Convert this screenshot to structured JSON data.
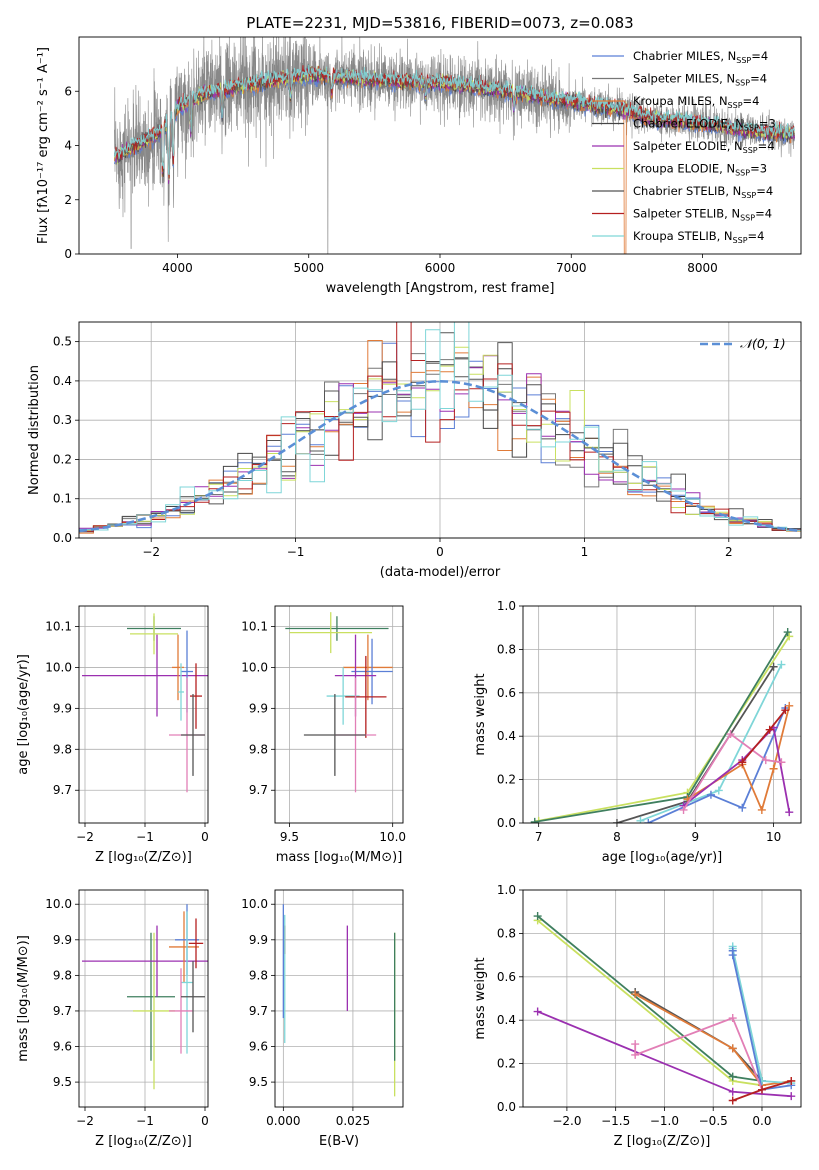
{
  "title": "PLATE=2231, MJD=53816, FIBERID=0073, z=0.083",
  "colors": {
    "grid": "#b0b0b0",
    "chabrier_miles": "#5b7fd6",
    "salpeter_miles": "#777777",
    "kroupa_miles": "#e07b39",
    "chabrier_elodie": "#444444",
    "salpeter_elodie": "#9b30b0",
    "kroupa_elodie": "#c9e060",
    "chabrier_stelib": "#555555",
    "salpeter_stelib": "#b52020",
    "kroupa_stelib": "#7fd6d8",
    "pink": "#e27fb6",
    "darkgreen": "#3f7f5f",
    "gauss": "#5b8fd6"
  },
  "chart_data": [
    {
      "type": "line",
      "panel": "spectrum",
      "xlabel": "wavelength [Angstrom, rest frame]",
      "ylabel": "Flux [fλ10⁻¹⁷ erg cm⁻² s⁻¹ A⁻¹]",
      "xlim": [
        3250,
        8750
      ],
      "ylim": [
        0,
        8
      ],
      "xticks": [
        "4000",
        "5000",
        "6000",
        "7000",
        "8000"
      ],
      "yticks": [
        "0",
        "2",
        "4",
        "6"
      ],
      "continuum": {
        "x": [
          3550,
          3600,
          3700,
          3800,
          3900,
          4000,
          4200,
          4500,
          5000,
          5500,
          6000,
          6500,
          7000,
          7400,
          7600,
          8000,
          8400,
          8700
        ],
        "y": [
          3.6,
          3.8,
          4.0,
          4.3,
          4.6,
          5.4,
          5.9,
          6.2,
          6.6,
          6.4,
          6.3,
          6.0,
          5.6,
          5.3,
          5.0,
          4.8,
          4.5,
          4.4
        ]
      },
      "legend": [
        {
          "label": "Chabrier MILES, N",
          "sub": "SSP",
          "suffix": "=4",
          "color": "chabrier_miles"
        },
        {
          "label": "Salpeter MILES, N",
          "sub": "SSP",
          "suffix": "=4",
          "color": "salpeter_miles"
        },
        {
          "label": "Kroupa MILES, N",
          "sub": "SSP",
          "suffix": "=4",
          "color": "kroupa_miles"
        },
        {
          "label": "Chabrier ELODIE, N",
          "sub": "SSP",
          "suffix": "=3",
          "color": "chabrier_elodie"
        },
        {
          "label": "Salpeter ELODIE, N",
          "sub": "SSP",
          "suffix": "=4",
          "color": "salpeter_elodie"
        },
        {
          "label": "Kroupa ELODIE, N",
          "sub": "SSP",
          "suffix": "=3",
          "color": "kroupa_elodie"
        },
        {
          "label": "Chabrier STELIB, N",
          "sub": "SSP",
          "suffix": "=4",
          "color": "chabrier_stelib"
        },
        {
          "label": "Salpeter STELIB, N",
          "sub": "SSP",
          "suffix": "=4",
          "color": "salpeter_stelib"
        },
        {
          "label": "Kroupa STELIB, N",
          "sub": "SSP",
          "suffix": "=4",
          "color": "kroupa_stelib"
        }
      ]
    },
    {
      "type": "line",
      "panel": "residuals",
      "xlabel": "(data-model)/error",
      "ylabel": "Normed distribution",
      "xlim": [
        -2.5,
        2.5
      ],
      "ylim": [
        0,
        0.55
      ],
      "xticks": [
        "−2",
        "−1",
        "0",
        "1",
        "2"
      ],
      "yticks": [
        "0.0",
        "0.1",
        "0.2",
        "0.3",
        "0.4",
        "0.5"
      ],
      "legend": "𝒩(0, 1)",
      "bin_width": 0.1
    },
    {
      "type": "scatter",
      "panel": "Z-age",
      "xlabel": "Z [log₁₀(Z/Z⊙)]",
      "ylabel": "age  [log₁₀(age/yr)]",
      "xlim": [
        -2.1,
        0.05
      ],
      "ylim": [
        9.62,
        10.15
      ],
      "xticks": [
        "−2",
        "−1",
        "0"
      ],
      "yticks": [
        "9.7",
        "9.8",
        "9.9",
        "10.0",
        "10.1"
      ],
      "points": [
        {
          "x": -0.85,
          "y": 10.095,
          "xerr": 0.45,
          "yerr": 0.03,
          "color": "darkgreen"
        },
        {
          "x": -0.85,
          "y": 10.082,
          "xerr": 0.4,
          "yerr": 0.05,
          "color": "kroupa_elodie"
        },
        {
          "x": -0.8,
          "y": 9.98,
          "xerr": 1.25,
          "yerr": 0.1,
          "color": "salpeter_elodie"
        },
        {
          "x": -0.45,
          "y": 10.0,
          "xerr": 0.1,
          "yerr": 0.08,
          "color": "kroupa_miles"
        },
        {
          "x": -0.3,
          "y": 9.99,
          "xerr": 0.1,
          "yerr": 0.1,
          "color": "chabrier_miles"
        },
        {
          "x": -0.4,
          "y": 9.94,
          "xerr": 0.05,
          "yerr": 0.07,
          "color": "kroupa_stelib"
        },
        {
          "x": -0.15,
          "y": 9.93,
          "xerr": 0.1,
          "yerr": 0.08,
          "color": "salpeter_stelib"
        },
        {
          "x": -0.3,
          "y": 9.835,
          "xerr": 0.3,
          "yerr": 0.14,
          "color": "pink"
        },
        {
          "x": -0.2,
          "y": 9.835,
          "xerr": 0.2,
          "yerr": 0.1,
          "color": "chabrier_stelib"
        }
      ]
    },
    {
      "type": "scatter",
      "panel": "mass-age",
      "xlabel": "mass [log₁₀(M/M⊙)]",
      "ylabel": "",
      "xlim": [
        9.43,
        10.05
      ],
      "ylim": [
        9.62,
        10.15
      ],
      "xticks": [
        "9.5",
        "10.0"
      ],
      "yticks": [
        "9.7",
        "9.8",
        "9.9",
        "10.0",
        "10.1"
      ],
      "points": [
        {
          "x": 9.73,
          "y": 10.095,
          "xerr": 0.25,
          "yerr": 0.03,
          "color": "darkgreen"
        },
        {
          "x": 9.7,
          "y": 10.085,
          "xerr": 0.2,
          "yerr": 0.05,
          "color": "kroupa_elodie"
        },
        {
          "x": 9.88,
          "y": 10.0,
          "xerr": 0.12,
          "yerr": 0.08,
          "color": "kroupa_miles"
        },
        {
          "x": 9.9,
          "y": 9.99,
          "xerr": 0.1,
          "yerr": 0.08,
          "color": "chabrier_miles"
        },
        {
          "x": 9.82,
          "y": 9.98,
          "xerr": 0.1,
          "yerr": 0.1,
          "color": "salpeter_elodie"
        },
        {
          "x": 9.76,
          "y": 9.93,
          "xerr": 0.08,
          "yerr": 0.07,
          "color": "kroupa_stelib"
        },
        {
          "x": 9.87,
          "y": 9.928,
          "xerr": 0.1,
          "yerr": 0.1,
          "color": "salpeter_stelib"
        },
        {
          "x": 9.82,
          "y": 9.835,
          "xerr": 0.1,
          "yerr": 0.14,
          "color": "pink"
        },
        {
          "x": 9.72,
          "y": 9.835,
          "xerr": 0.15,
          "yerr": 0.1,
          "color": "chabrier_stelib"
        }
      ]
    },
    {
      "type": "line",
      "panel": "age-weight",
      "xlabel": "age  [log₁₀(age/yr)]",
      "ylabel": "mass weight",
      "xlim": [
        6.8,
        10.35
      ],
      "ylim": [
        0,
        1
      ],
      "xticks": [
        "7",
        "8",
        "9",
        "10"
      ],
      "yticks": [
        "0.0",
        "0.2",
        "0.4",
        "0.6",
        "0.8",
        "1.0"
      ],
      "series": [
        {
          "color": "kroupa_elodie",
          "x": [
            7.0,
            8.9,
            10.2
          ],
          "y": [
            0.01,
            0.14,
            0.86
          ]
        },
        {
          "color": "darkgreen",
          "x": [
            6.95,
            8.9,
            10.18
          ],
          "y": [
            0.005,
            0.12,
            0.88
          ]
        },
        {
          "color": "chabrier_stelib",
          "x": [
            8.0,
            8.9,
            10.0
          ],
          "y": [
            0.0,
            0.1,
            0.72
          ]
        },
        {
          "color": "kroupa_stelib",
          "x": [
            8.3,
            9.3,
            10.1
          ],
          "y": [
            0.01,
            0.15,
            0.73
          ]
        },
        {
          "color": "chabrier_miles",
          "x": [
            8.4,
            9.2,
            9.6,
            10.15
          ],
          "y": [
            0.0,
            0.13,
            0.07,
            0.53
          ]
        },
        {
          "color": "kroupa_miles",
          "x": [
            8.9,
            9.6,
            9.85,
            10.0,
            10.2
          ],
          "y": [
            0.11,
            0.27,
            0.06,
            0.25,
            0.54
          ]
        },
        {
          "color": "salpeter_elodie",
          "x": [
            8.85,
            9.6,
            10.0,
            10.2
          ],
          "y": [
            0.08,
            0.29,
            0.44,
            0.05
          ]
        },
        {
          "color": "pink",
          "x": [
            8.85,
            9.45,
            9.9,
            10.1
          ],
          "y": [
            0.06,
            0.41,
            0.29,
            0.28
          ]
        },
        {
          "color": "salpeter_stelib",
          "x": [
            9.6,
            9.95,
            10.15
          ],
          "y": [
            0.28,
            0.43,
            0.52
          ]
        }
      ]
    },
    {
      "type": "scatter",
      "panel": "Z-mass",
      "xlabel": "Z [log₁₀(Z/Z⊙)]",
      "ylabel": "mass [log₁₀(M/M⊙)]",
      "xlim": [
        -2.1,
        0.05
      ],
      "ylim": [
        9.43,
        10.04
      ],
      "xticks": [
        "−2",
        "−1",
        "0"
      ],
      "yticks": [
        "9.5",
        "9.6",
        "9.7",
        "9.8",
        "9.9",
        "10.0"
      ],
      "points": [
        {
          "x": -0.9,
          "y": 9.74,
          "xerr": 0.4,
          "yerr": 0.18,
          "color": "darkgreen"
        },
        {
          "x": -0.85,
          "y": 9.7,
          "xerr": 0.35,
          "yerr": 0.22,
          "color": "kroupa_elodie"
        },
        {
          "x": -0.8,
          "y": 9.84,
          "xerr": 1.25,
          "yerr": 0.1,
          "color": "salpeter_elodie"
        },
        {
          "x": -0.35,
          "y": 9.88,
          "xerr": 0.25,
          "yerr": 0.1,
          "color": "kroupa_miles"
        },
        {
          "x": -0.3,
          "y": 9.9,
          "xerr": 0.2,
          "yerr": 0.1,
          "color": "chabrier_miles"
        },
        {
          "x": -0.15,
          "y": 9.89,
          "xerr": 0.12,
          "yerr": 0.07,
          "color": "salpeter_stelib"
        },
        {
          "x": -0.3,
          "y": 9.78,
          "xerr": 0.1,
          "yerr": 0.2,
          "color": "kroupa_stelib"
        },
        {
          "x": -0.4,
          "y": 9.7,
          "xerr": 0.2,
          "yerr": 0.12,
          "color": "pink"
        },
        {
          "x": -0.2,
          "y": 9.74,
          "xerr": 0.2,
          "yerr": 0.1,
          "color": "chabrier_stelib"
        }
      ]
    },
    {
      "type": "scatter",
      "panel": "EBV-mass",
      "xlabel": "E(B-V)",
      "ylabel": "",
      "xlim": [
        -0.003,
        0.043
      ],
      "ylim": [
        9.43,
        10.04
      ],
      "xticks": [
        "0.000",
        "0.025"
      ],
      "yticks": [
        "9.5",
        "9.6",
        "9.7",
        "9.8",
        "9.9",
        "10.0"
      ],
      "points": [
        {
          "x": 0.0,
          "y": 9.84,
          "xerr": 0.0,
          "yerr": 0.16,
          "color": "chabrier_miles"
        },
        {
          "x": 0.0005,
          "y": 9.9,
          "xerr": 0.0,
          "yerr": 0.04,
          "color": "salpeter_stelib"
        },
        {
          "x": 0.0005,
          "y": 9.79,
          "xerr": 0.0,
          "yerr": 0.18,
          "color": "kroupa_stelib"
        },
        {
          "x": 0.023,
          "y": 9.82,
          "xerr": 0.0,
          "yerr": 0.12,
          "color": "salpeter_elodie"
        },
        {
          "x": 0.04,
          "y": 9.69,
          "xerr": 0.0,
          "yerr": 0.23,
          "color": "kroupa_elodie"
        },
        {
          "x": 0.04,
          "y": 9.74,
          "xerr": 0.0,
          "yerr": 0.18,
          "color": "darkgreen"
        }
      ]
    },
    {
      "type": "line",
      "panel": "Z-weight",
      "xlabel": "Z [log₁₀(Z/Z⊙)]",
      "ylabel": "mass weight",
      "xlim": [
        -2.45,
        0.4
      ],
      "ylim": [
        0,
        1
      ],
      "xticks": [
        "−2.0",
        "−1.5",
        "−1.0",
        "−0.5",
        "0.0"
      ],
      "yticks": [
        "0.0",
        "0.2",
        "0.4",
        "0.6",
        "0.8",
        "1.0"
      ],
      "series": [
        {
          "color": "kroupa_elodie",
          "x": [
            -2.3,
            -0.3,
            0.0
          ],
          "y": [
            0.86,
            0.12,
            0.1
          ]
        },
        {
          "color": "darkgreen",
          "x": [
            -2.3,
            -0.3,
            0.0
          ],
          "y": [
            0.88,
            0.14,
            0.12
          ]
        },
        {
          "color": "chabrier_stelib",
          "x": [
            -1.3,
            -0.3,
            0.0
          ],
          "y": [
            0.53,
            0.27,
            0.12
          ]
        },
        {
          "color": "kroupa_miles",
          "x": [
            -1.3,
            -0.3,
            0.0,
            0.3
          ],
          "y": [
            0.52,
            0.27,
            0.1,
            0.12
          ]
        },
        {
          "color": "kroupa_stelib",
          "x": [
            -0.3,
            -0.3,
            0.0,
            0.3
          ],
          "y": [
            0.74,
            0.73,
            0.12,
            0.11
          ]
        },
        {
          "color": "chabrier_miles",
          "x": [
            -0.3,
            -0.3,
            0.0,
            0.3
          ],
          "y": [
            0.72,
            0.7,
            0.08,
            0.1
          ]
        },
        {
          "color": "salpeter_elodie",
          "x": [
            -2.3,
            -0.3,
            0.3
          ],
          "y": [
            0.44,
            0.07,
            0.05
          ]
        },
        {
          "color": "pink",
          "x": [
            -1.3,
            -1.3,
            -0.3,
            0.0
          ],
          "y": [
            0.29,
            0.24,
            0.41,
            0.08
          ]
        },
        {
          "color": "salpeter_stelib",
          "x": [
            -0.3,
            0.0,
            0.3
          ],
          "y": [
            0.03,
            0.08,
            0.12
          ]
        }
      ]
    }
  ]
}
